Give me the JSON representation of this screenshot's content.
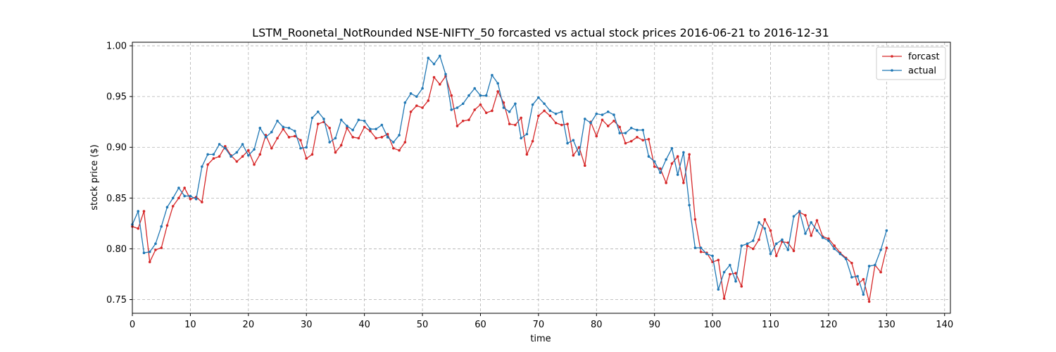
{
  "chart_data": {
    "type": "line",
    "title": "LSTM_Roonetal_NotRounded NSE-NIFTY_50 forcasted vs actual stock prices 2016-06-21 to 2016-12-31",
    "xlabel": "time",
    "ylabel": "stock price ($)",
    "xlim": [
      0,
      141
    ],
    "ylim": [
      0.7365,
      1.0035
    ],
    "xticks": [
      0,
      10,
      20,
      30,
      40,
      50,
      60,
      70,
      80,
      90,
      100,
      110,
      120,
      130,
      140
    ],
    "yticks": [
      0.75,
      0.8,
      0.85,
      0.9,
      0.95,
      1.0
    ],
    "ytick_labels": [
      "0.75",
      "0.80",
      "0.85",
      "0.90",
      "0.95",
      "1.00"
    ],
    "grid": true,
    "legend_position": "top-right",
    "series": [
      {
        "name": "forcast",
        "color": "#d62728",
        "values": [
          0.822,
          0.82,
          0.837,
          0.787,
          0.799,
          0.801,
          0.823,
          0.842,
          0.85,
          0.86,
          0.849,
          0.851,
          0.846,
          0.883,
          0.889,
          0.891,
          0.901,
          0.892,
          0.886,
          0.891,
          0.897,
          0.883,
          0.893,
          0.912,
          0.899,
          0.909,
          0.918,
          0.91,
          0.911,
          0.907,
          0.889,
          0.893,
          0.923,
          0.925,
          0.919,
          0.895,
          0.902,
          0.919,
          0.91,
          0.909,
          0.92,
          0.916,
          0.909,
          0.91,
          0.913,
          0.899,
          0.897,
          0.905,
          0.935,
          0.941,
          0.939,
          0.946,
          0.969,
          0.962,
          0.97,
          0.951,
          0.921,
          0.926,
          0.927,
          0.937,
          0.942,
          0.934,
          0.936,
          0.955,
          0.944,
          0.923,
          0.922,
          0.929,
          0.893,
          0.906,
          0.931,
          0.936,
          0.931,
          0.924,
          0.922,
          0.923,
          0.892,
          0.9,
          0.882,
          0.925,
          0.911,
          0.927,
          0.921,
          0.926,
          0.92,
          0.904,
          0.906,
          0.91,
          0.907,
          0.908,
          0.881,
          0.879,
          0.865,
          0.884,
          0.891,
          0.865,
          0.893,
          0.829,
          0.797,
          0.796,
          0.787,
          0.789,
          0.751,
          0.775,
          0.776,
          0.763,
          0.803,
          0.8,
          0.809,
          0.829,
          0.818,
          0.793,
          0.807,
          0.806,
          0.798,
          0.836,
          0.833,
          0.813,
          0.828,
          0.812,
          0.81,
          0.803,
          0.796,
          0.791,
          0.786,
          0.765,
          0.77,
          0.748,
          0.784,
          0.777,
          0.801
        ]
      },
      {
        "name": "actual",
        "color": "#1f77b4",
        "values": [
          0.824,
          0.837,
          0.796,
          0.797,
          0.805,
          0.822,
          0.841,
          0.85,
          0.86,
          0.852,
          0.852,
          0.849,
          0.881,
          0.893,
          0.893,
          0.903,
          0.899,
          0.891,
          0.895,
          0.903,
          0.892,
          0.898,
          0.919,
          0.91,
          0.915,
          0.926,
          0.92,
          0.919,
          0.916,
          0.899,
          0.9,
          0.929,
          0.935,
          0.928,
          0.905,
          0.909,
          0.927,
          0.921,
          0.917,
          0.927,
          0.926,
          0.918,
          0.918,
          0.922,
          0.91,
          0.905,
          0.912,
          0.944,
          0.953,
          0.95,
          0.958,
          0.988,
          0.982,
          0.99,
          0.972,
          0.937,
          0.939,
          0.943,
          0.951,
          0.958,
          0.951,
          0.951,
          0.971,
          0.963,
          0.939,
          0.935,
          0.943,
          0.909,
          0.913,
          0.942,
          0.949,
          0.943,
          0.936,
          0.933,
          0.935,
          0.904,
          0.907,
          0.893,
          0.928,
          0.924,
          0.933,
          0.932,
          0.935,
          0.932,
          0.914,
          0.914,
          0.919,
          0.917,
          0.917,
          0.891,
          0.886,
          0.875,
          0.888,
          0.899,
          0.873,
          0.895,
          0.843,
          0.801,
          0.801,
          0.795,
          0.793,
          0.76,
          0.777,
          0.784,
          0.768,
          0.803,
          0.805,
          0.808,
          0.826,
          0.82,
          0.795,
          0.805,
          0.809,
          0.799,
          0.832,
          0.837,
          0.815,
          0.826,
          0.818,
          0.811,
          0.808,
          0.8,
          0.795,
          0.79,
          0.772,
          0.773,
          0.755,
          0.783,
          0.784,
          0.799,
          0.818
        ]
      }
    ]
  }
}
